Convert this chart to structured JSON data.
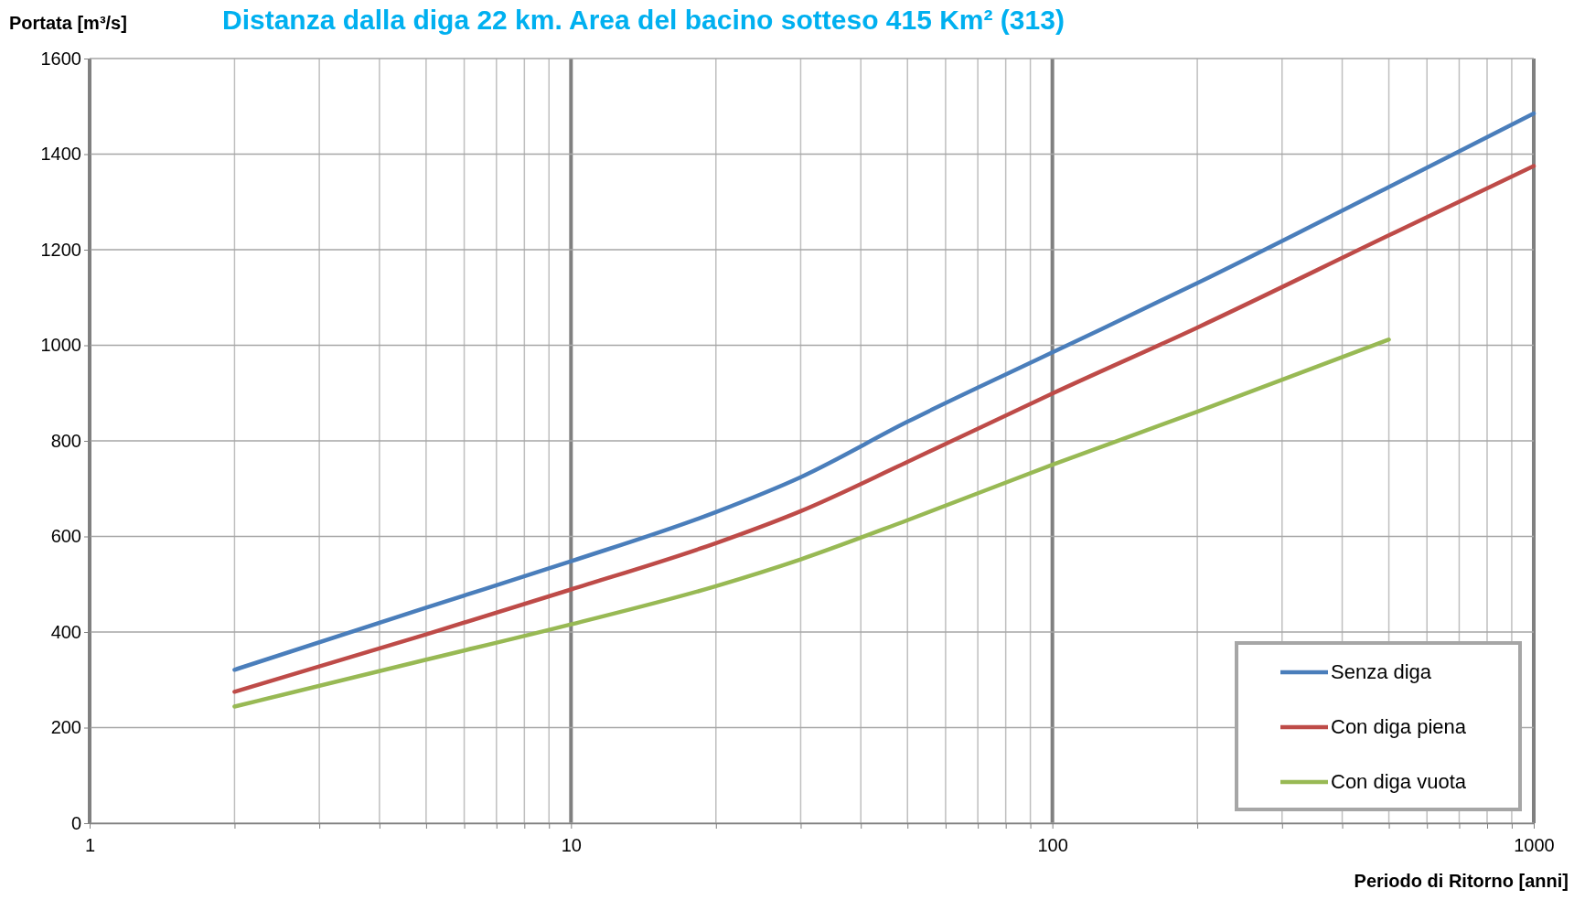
{
  "chart_data": {
    "type": "line",
    "title": "Distanza dalla diga 22 km. Area del bacino sotteso 415 Km²  (313)",
    "xlabel": "Periodo di Ritorno [anni]",
    "ylabel": "Portata [m³/s]",
    "log": "x",
    "xlim": [
      1,
      1000
    ],
    "ylim": [
      0,
      1600
    ],
    "xticks": [
      1,
      {
        "value": 2,
        "label": null
      },
      {
        "value": 3,
        "label": null
      },
      {
        "value": 4,
        "label": null
      },
      {
        "value": 5,
        "label": null
      },
      {
        "value": 6,
        "label": null
      },
      {
        "value": 7,
        "label": null
      },
      {
        "value": 8,
        "label": null
      },
      {
        "value": 9,
        "label": null
      },
      10,
      {
        "value": 20,
        "label": null
      },
      {
        "value": 30,
        "label": null
      },
      {
        "value": 40,
        "label": null
      },
      {
        "value": 50,
        "label": null
      },
      {
        "value": 60,
        "label": null
      },
      {
        "value": 70,
        "label": null
      },
      {
        "value": 80,
        "label": null
      },
      {
        "value": 90,
        "label": null
      },
      100,
      {
        "value": 200,
        "label": null
      },
      {
        "value": 300,
        "label": null
      },
      {
        "value": 400,
        "label": null
      },
      {
        "value": 500,
        "label": null
      },
      {
        "value": 600,
        "label": null
      },
      {
        "value": 700,
        "label": null
      },
      {
        "value": 800,
        "label": null
      },
      {
        "value": 900,
        "label": null
      },
      1000
    ],
    "yticks": [
      0,
      200,
      400,
      600,
      800,
      1000,
      1200,
      1400,
      1600
    ],
    "grid": true,
    "legend": "bottom right",
    "marker": "none",
    "line_style": "solid",
    "series": [
      {
        "name": "Senza diga",
        "color": "#4a7ebb",
        "x": [
          2,
          5,
          10,
          20,
          30,
          50,
          100,
          200,
          500,
          1000
        ],
        "values": [
          321,
          451,
          548,
          651,
          724,
          840,
          985,
          1130,
          1331,
          1485
        ]
      },
      {
        "name": "Con diga piena",
        "color": "#be4b48",
        "x": [
          2,
          5,
          10,
          20,
          30,
          50,
          100,
          200,
          500,
          1000
        ],
        "values": [
          275,
          395,
          489,
          586,
          653,
          756,
          899,
          1037,
          1230,
          1375
        ]
      },
      {
        "name": "Con diga vuota",
        "color": "#98b954",
        "x": [
          2,
          5,
          10,
          20,
          30,
          50,
          100,
          200,
          500
        ],
        "values": [
          244,
          342,
          416,
          496,
          552,
          634,
          750,
          861,
          1012
        ]
      }
    ]
  }
}
